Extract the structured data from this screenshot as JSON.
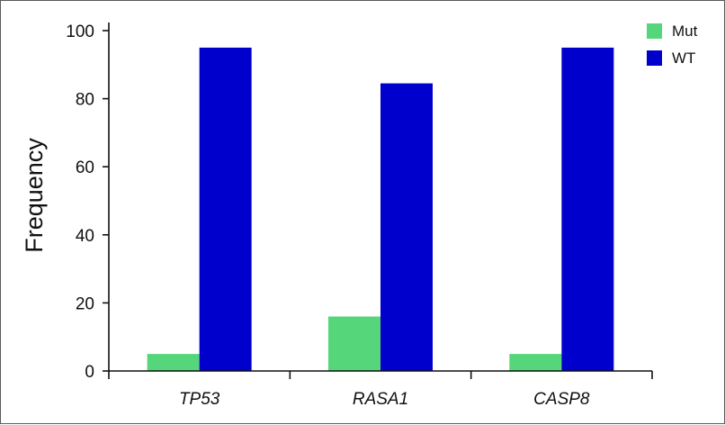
{
  "chart_data": {
    "type": "bar",
    "categories": [
      "TP53",
      "RASA1",
      "CASP8"
    ],
    "series": [
      {
        "name": "Mut",
        "values": [
          5,
          16,
          5
        ],
        "color": "#55d67a"
      },
      {
        "name": "WT",
        "values": [
          95,
          84.5,
          95
        ],
        "color": "#0000cc"
      }
    ],
    "title": "",
    "xlabel": "",
    "ylabel": "Frequency",
    "ylim": [
      0,
      100
    ],
    "yticks": [
      0,
      20,
      40,
      60,
      80,
      100
    ],
    "ytick_labels": [
      "0",
      "20",
      "40",
      "60",
      "80",
      "100"
    ],
    "grid": false,
    "legend_position": "top-right"
  }
}
